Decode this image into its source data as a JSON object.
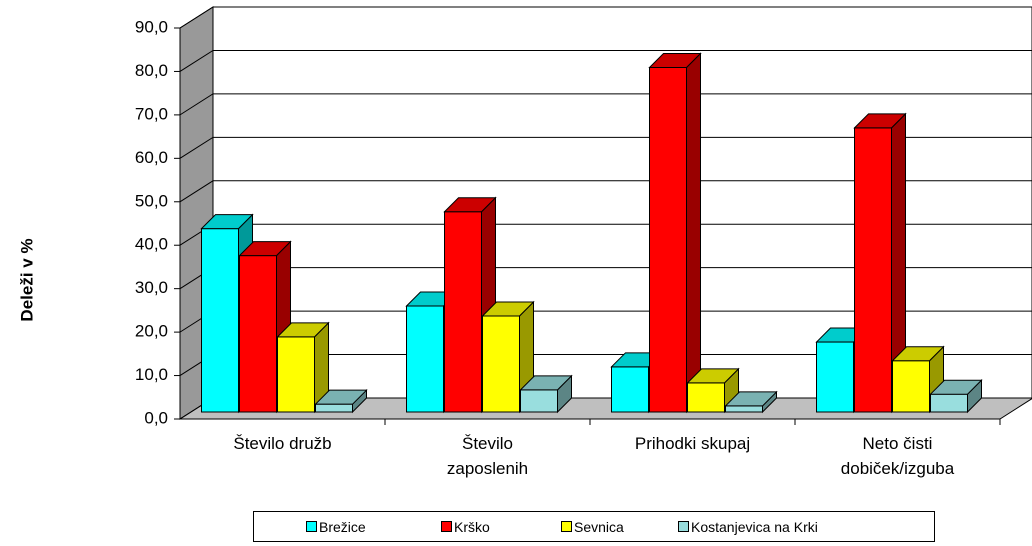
{
  "chart_data": {
    "type": "bar3d",
    "y_label": "Deleži v %",
    "categories": [
      "Število družb",
      "Število\nzaposlenih",
      "Prihodki skupaj",
      "Neto čisti\ndobiček/izguba"
    ],
    "series": [
      {
        "name": "Brežice",
        "color": "#00ffff",
        "values": [
          42.2,
          24.4,
          10.4,
          16.1
        ]
      },
      {
        "name": "Krško",
        "color": "#ff0000",
        "values": [
          36.0,
          46.1,
          79.3,
          65.4
        ]
      },
      {
        "name": "Sevnica",
        "color": "#ffff00",
        "values": [
          17.3,
          22.1,
          6.7,
          11.8
        ]
      },
      {
        "name": "Kostanjevica na Krki",
        "color": "#99dede",
        "values": [
          1.8,
          5.1,
          1.4,
          4.1
        ]
      }
    ],
    "ylim": [
      0,
      90
    ],
    "yticks": [
      {
        "value": 0,
        "label": "0,0"
      },
      {
        "value": 10,
        "label": "10,0"
      },
      {
        "value": 20,
        "label": "20,0"
      },
      {
        "value": 30,
        "label": "30,0"
      },
      {
        "value": 40,
        "label": "40,0"
      },
      {
        "value": 50,
        "label": "50,0"
      },
      {
        "value": 60,
        "label": "60,0"
      },
      {
        "value": 70,
        "label": "70,0"
      },
      {
        "value": 80,
        "label": "80,0"
      },
      {
        "value": 90,
        "label": "90,0"
      }
    ],
    "grid": true
  }
}
